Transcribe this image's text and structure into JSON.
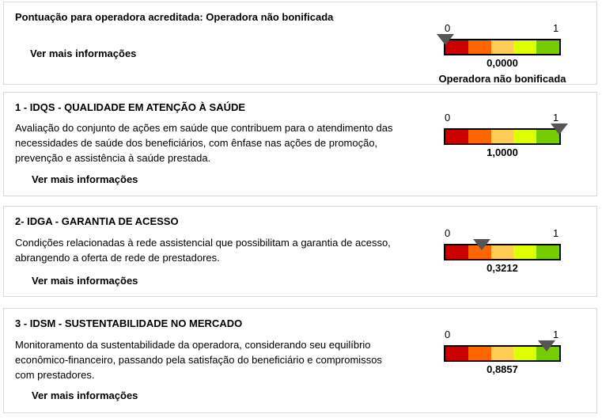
{
  "scale": {
    "min_label": "0",
    "max_label": "1",
    "colors": [
      "#cc0000",
      "#ff6600",
      "#ffcc55",
      "#ddff00",
      "#77cc00"
    ],
    "pointer_color": "#555555"
  },
  "sections": [
    {
      "title": "Pontuação para operadora acreditada: Operadora não bonificada",
      "description": "",
      "more": "Ver mais informações",
      "value": 0,
      "value_label": "0,0000",
      "status": "Operadora não bonificada"
    },
    {
      "title": "1 - IDQS - QUALIDADE EM ATENÇÃO À SAÚDE",
      "description": "Avaliação do conjunto de ações em saúde que contribuem para o atendimento das necessidades de saúde dos beneficiários, com ênfase nas ações de promoção, prevenção e assistência à saúde prestada.",
      "more": "Ver mais informações",
      "value": 1,
      "value_label": "1,0000"
    },
    {
      "title": "2- IDGA - GARANTIA DE ACESSO",
      "description": "Condições relacionadas à rede assistencial que possibilitam a garantia de acesso, abrangendo a oferta de rede de prestadores.",
      "more": "Ver mais informações",
      "value": 0.3212,
      "value_label": "0,3212"
    },
    {
      "title": "3 - IDSM - SUSTENTABILIDADE NO MERCADO",
      "description": "Monitoramento da sustentabilidade da operadora, considerando seu equilíbrio econômico-financeiro, passando pela satisfação do beneficiário e compromissos com prestadores.",
      "more": "Ver mais informações",
      "value": 0.8857,
      "value_label": "0,8857"
    }
  ]
}
